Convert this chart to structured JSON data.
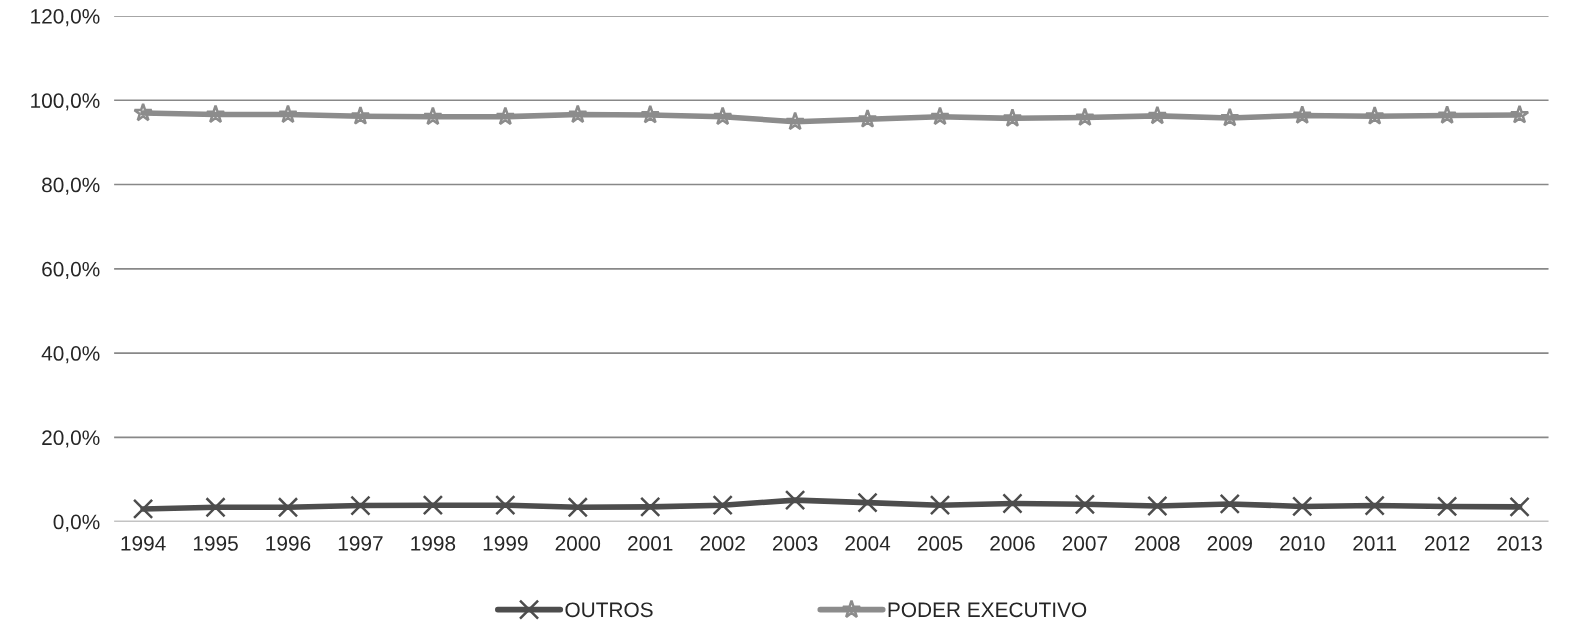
{
  "chart_data": {
    "type": "line",
    "categories": [
      "1994",
      "1995",
      "1996",
      "1997",
      "1998",
      "1999",
      "2000",
      "2001",
      "2002",
      "2003",
      "2004",
      "2005",
      "2006",
      "2007",
      "2008",
      "2009",
      "2010",
      "2011",
      "2012",
      "2013"
    ],
    "series": [
      {
        "name": "OUTROS",
        "color": "#4d4d4d",
        "marker": "cross",
        "values": [
          3.0,
          3.4,
          3.4,
          3.8,
          3.9,
          3.9,
          3.4,
          3.5,
          3.9,
          5.1,
          4.5,
          3.9,
          4.3,
          4.1,
          3.7,
          4.2,
          3.6,
          3.8,
          3.6,
          3.5
        ]
      },
      {
        "name": "PODER EXECUTIVO",
        "color": "#8c8c8c",
        "marker": "star",
        "values": [
          97.0,
          96.6,
          96.6,
          96.2,
          96.1,
          96.1,
          96.6,
          96.5,
          96.1,
          94.9,
          95.5,
          96.1,
          95.7,
          95.9,
          96.3,
          95.8,
          96.4,
          96.2,
          96.4,
          96.5
        ]
      }
    ],
    "ylim": [
      0,
      120
    ],
    "yticks": [
      {
        "value": 0,
        "label": "0,0%"
      },
      {
        "value": 20,
        "label": "20,0%"
      },
      {
        "value": 40,
        "label": "40,0%"
      },
      {
        "value": 60,
        "label": "60,0%"
      },
      {
        "value": 80,
        "label": "80,0%"
      },
      {
        "value": 100,
        "label": "100,0%"
      },
      {
        "value": 120,
        "label": "120,0%"
      }
    ],
    "grid": "y",
    "legend": "bottom",
    "line_style": "solid"
  }
}
